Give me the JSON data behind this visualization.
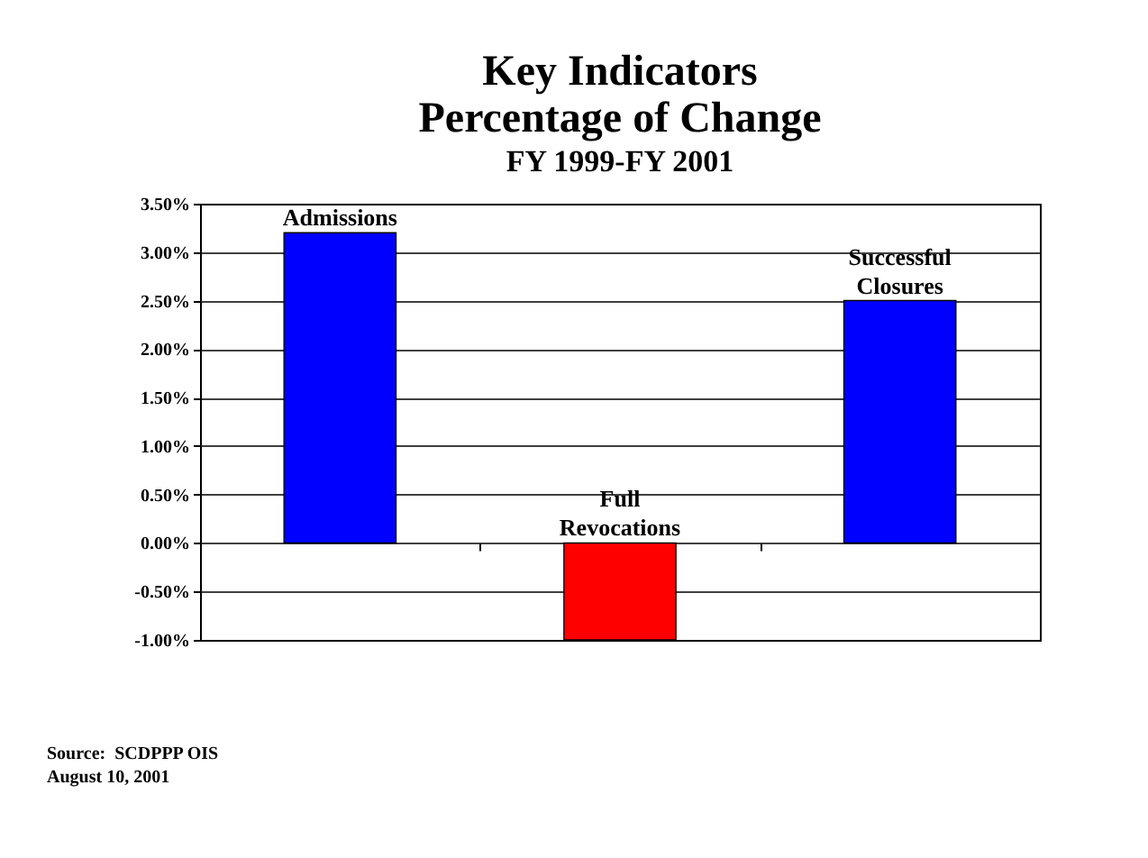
{
  "chart_data": {
    "type": "bar",
    "title": "Key Indicators\nPercentage of Change",
    "subtitle": "FY 1999-FY 2001",
    "categories": [
      "Admissions",
      "Full Revocations",
      "Successful Closures"
    ],
    "values": [
      3.2,
      -1.0,
      2.5
    ],
    "colors": [
      "#0000ff",
      "#ff0000",
      "#0000ff"
    ],
    "ylim": [
      -1.0,
      3.5
    ],
    "yticks": [
      {
        "value": -1.0,
        "label": "-1.00%"
      },
      {
        "value": -0.5,
        "label": "-0.50%"
      },
      {
        "value": 0,
        "label": "0.00%"
      },
      {
        "value": 0.5,
        "label": "0.50%"
      },
      {
        "value": 1.0,
        "label": "1.00%"
      },
      {
        "value": 1.5,
        "label": "1.50%"
      },
      {
        "value": 2.0,
        "label": "2.00%"
      },
      {
        "value": 2.5,
        "label": "2.50%"
      },
      {
        "value": 3.0,
        "label": "3.00%"
      },
      {
        "value": 3.5,
        "label": "3.50%"
      }
    ],
    "grid": "y",
    "tick_labels": "y",
    "annotations": [
      "Source:  SCDPPP OIS",
      "August 10, 2001"
    ]
  }
}
